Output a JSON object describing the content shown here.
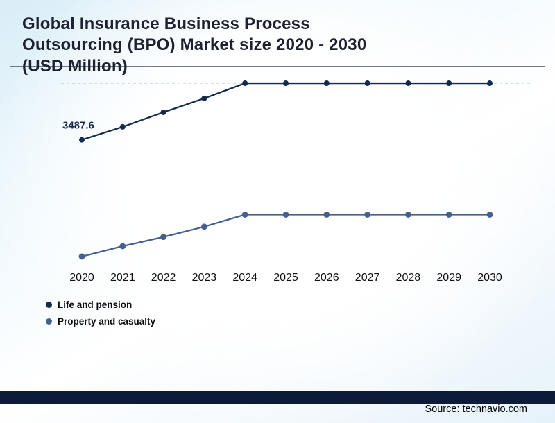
{
  "page": {
    "title": "Global Insurance Business Process Outsourcing (BPO) Market size 2020 - 2030 (USD Million)",
    "source": "Source: technavio.com"
  },
  "chart_data": {
    "type": "line",
    "title": "Global Insurance Business Process Outsourcing (BPO) Market size 2020 - 2030 (USD Million)",
    "xlabel": "",
    "ylabel": "USD Million",
    "categories": [
      "2020",
      "2021",
      "2022",
      "2023",
      "2024",
      "2025",
      "2026",
      "2027",
      "2028",
      "2029",
      "2030"
    ],
    "series": [
      {
        "name": "Life and pension",
        "color": "#15294d",
        "values": [
          3487.6,
          3720,
          3980,
          4230,
          4500,
          4500,
          4500,
          4500,
          4500,
          4500,
          4500
        ]
      },
      {
        "name": "Property and casualty",
        "color": "#44618e",
        "values": [
          1400,
          1585,
          1750,
          1935,
          2150,
          2150,
          2150,
          2150,
          2150,
          2150,
          2150
        ]
      }
    ],
    "ylim": [
      1300,
      4600
    ],
    "grid": "single dashed horizontal gridline at first-series plateau",
    "legend_position": "bottom-left",
    "annotation": {
      "text": "3487.6",
      "series": 0,
      "index": 0
    },
    "gridline_color": "#a9c0da",
    "axis_label_color": "#111111"
  }
}
